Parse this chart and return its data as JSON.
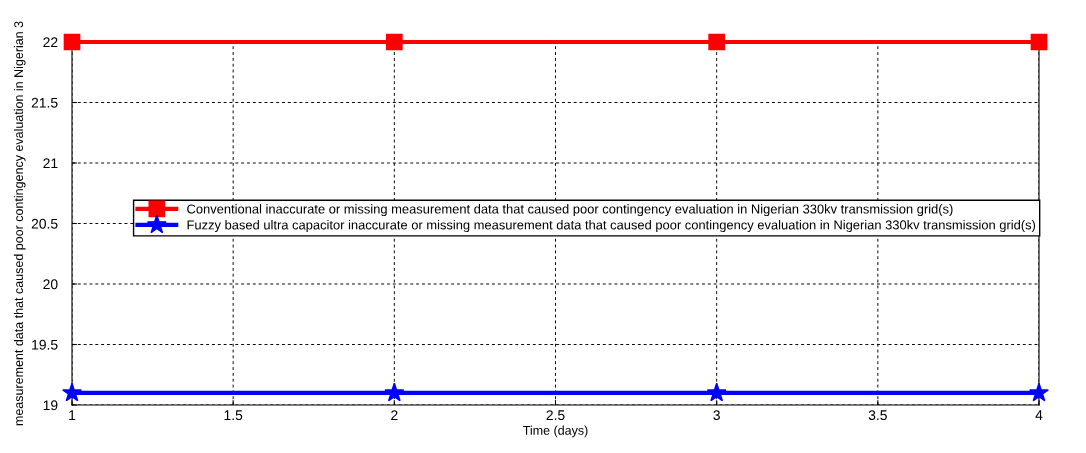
{
  "chart_data": {
    "type": "line",
    "xlabel": "Time (days)",
    "ylabel": "measurement data that caused poor contingency evaluation in Nigerian 3",
    "x": [
      1,
      2,
      3,
      4
    ],
    "series": [
      {
        "name": "Conventional inaccurate or missing measurement data that caused poor contingency evaluation in Nigerian 330kv transmission grid(s)",
        "color": "#ff0000",
        "values": [
          22,
          22,
          22,
          22
        ],
        "marker": "square"
      },
      {
        "name": "Fuzzy based ultra capacitor inaccurate or missing measurement data that caused poor contingency evaluation in Nigerian 330kv transmission grid(s)",
        "color": "#0000ff",
        "values": [
          19.1,
          19.1,
          19.1,
          19.1
        ],
        "marker": "star"
      }
    ],
    "xlim": [
      1,
      4
    ],
    "xticks": [
      1,
      1.5,
      2,
      2.5,
      3,
      3.5,
      4
    ],
    "ylim": [
      19,
      22
    ],
    "yticks": [
      19,
      19.5,
      20,
      20.5,
      21,
      21.5,
      22
    ],
    "grid": true,
    "legend": "center",
    "line_style": "solid"
  }
}
